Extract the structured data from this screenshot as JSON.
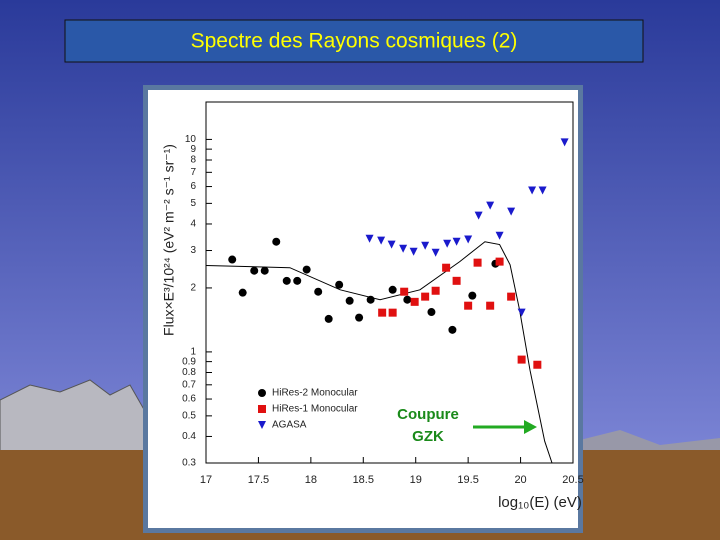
{
  "chart_data": {
    "type": "scatter",
    "title": "Spectre des Rayons cosmiques (2)",
    "x_label": "log₁₀(E) (eV)",
    "y_label": "Flux×E³/10²⁴ (eV² m⁻² s⁻¹ sr⁻¹)",
    "annotations": [
      "Coupure",
      "GZK"
    ],
    "annotation_color": "#1a8a1a",
    "xlim": [
      17,
      20.5
    ],
    "xticks": [
      17,
      17.5,
      18,
      18.5,
      19,
      19.5,
      20,
      20.5
    ],
    "ylim": [
      0.3,
      15
    ],
    "log_y": true,
    "yticks": [
      0.3,
      0.4,
      0.5,
      0.6,
      0.7,
      0.8,
      0.9,
      1,
      2,
      3,
      4,
      5,
      6,
      7,
      8,
      9,
      10
    ],
    "legend": "lower left",
    "series": [
      {
        "name": "HiRes-2 Monocular",
        "color": "#000000",
        "marker": "circle",
        "x": [
          17.25,
          17.35,
          17.46,
          17.56,
          17.67,
          17.77,
          17.87,
          17.96,
          18.07,
          18.17,
          18.27,
          18.37,
          18.46,
          18.57,
          18.78,
          18.92,
          19.15,
          19.35,
          19.54,
          19.76
        ],
        "values": [
          2.72,
          1.9,
          2.41,
          2.41,
          3.3,
          2.16,
          2.16,
          2.44,
          1.92,
          1.43,
          2.07,
          1.74,
          1.45,
          1.76,
          1.96,
          1.76,
          1.54,
          1.27,
          1.84,
          2.6
        ]
      },
      {
        "name": "HiRes-1 Monocular",
        "color": "#e01010",
        "marker": "square",
        "x": [
          18.68,
          18.78,
          18.89,
          18.99,
          19.09,
          19.19,
          19.29,
          19.39,
          19.5,
          19.59,
          19.71,
          19.8,
          19.91,
          20.01,
          20.16
        ],
        "values": [
          1.53,
          1.53,
          1.92,
          1.72,
          1.82,
          1.94,
          2.49,
          2.16,
          1.65,
          2.63,
          1.65,
          2.66,
          1.82,
          0.92,
          0.87
        ]
      },
      {
        "name": "AGASA",
        "color": "#1a1acc",
        "marker": "triangle",
        "x": [
          18.56,
          18.67,
          18.77,
          18.88,
          18.98,
          19.09,
          19.19,
          19.3,
          19.39,
          19.5,
          19.6,
          19.71,
          19.8,
          19.91,
          20.01,
          20.11,
          20.21,
          20.42
        ],
        "values": [
          3.41,
          3.34,
          3.2,
          3.06,
          2.96,
          3.16,
          2.93,
          3.23,
          3.3,
          3.38,
          4.38,
          4.88,
          3.52,
          4.57,
          1.53,
          5.75,
          5.75,
          9.68
        ]
      }
    ],
    "lines": [
      {
        "color": "#000000",
        "x": [
          17,
          17.8,
          18.28,
          18.66,
          19.04,
          19.42,
          19.66,
          19.8,
          19.9,
          19.99,
          20.09,
          20.23,
          20.3
        ],
        "values": [
          2.55,
          2.49,
          1.96,
          1.76,
          1.96,
          2.66,
          3.3,
          3.2,
          2.57,
          1.58,
          0.82,
          0.38,
          0.3
        ]
      }
    ]
  }
}
